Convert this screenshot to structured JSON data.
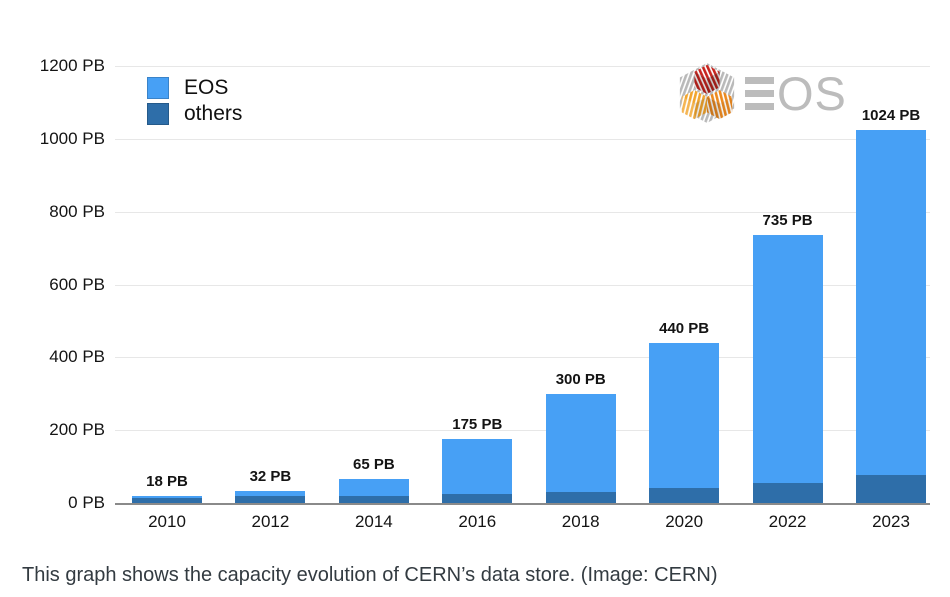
{
  "caption": "This graph shows the capacity evolution of CERN’s data store. (Image: CERN)",
  "logo": {
    "brand": "EOS",
    "os_text": "OS"
  },
  "legend": {
    "items": [
      {
        "label": "EOS",
        "color": "#47a0f5"
      },
      {
        "label": "others",
        "color": "#2e6ea9"
      }
    ]
  },
  "chart_data": {
    "type": "bar",
    "stacked": true,
    "title": "",
    "xlabel": "",
    "ylabel": "",
    "unit": "PB",
    "categories": [
      "2010",
      "2012",
      "2014",
      "2016",
      "2018",
      "2020",
      "2022",
      "2023"
    ],
    "series": [
      {
        "name": "others",
        "color": "#2e6ea9",
        "values": [
          15,
          20,
          20,
          24,
          30,
          40,
          54,
          78
        ]
      },
      {
        "name": "EOS",
        "color": "#47a0f5",
        "values": [
          3,
          12,
          45,
          151,
          270,
          400,
          681,
          946
        ]
      }
    ],
    "totals": [
      18,
      32,
      65,
      175,
      300,
      440,
      735,
      1024
    ],
    "bar_labels": [
      "18 PB",
      "32 PB",
      "65 PB",
      "175 PB",
      "300 PB",
      "440 PB",
      "735 PB",
      "1024 PB"
    ],
    "y_ticks": [
      "1200 PB",
      "1000 PB",
      "800 PB",
      "600 PB",
      "400 PB",
      "200 PB",
      "0 PB"
    ],
    "ylim": [
      0,
      1200
    ],
    "grid": "horizontal",
    "legend_position": "top-left"
  }
}
